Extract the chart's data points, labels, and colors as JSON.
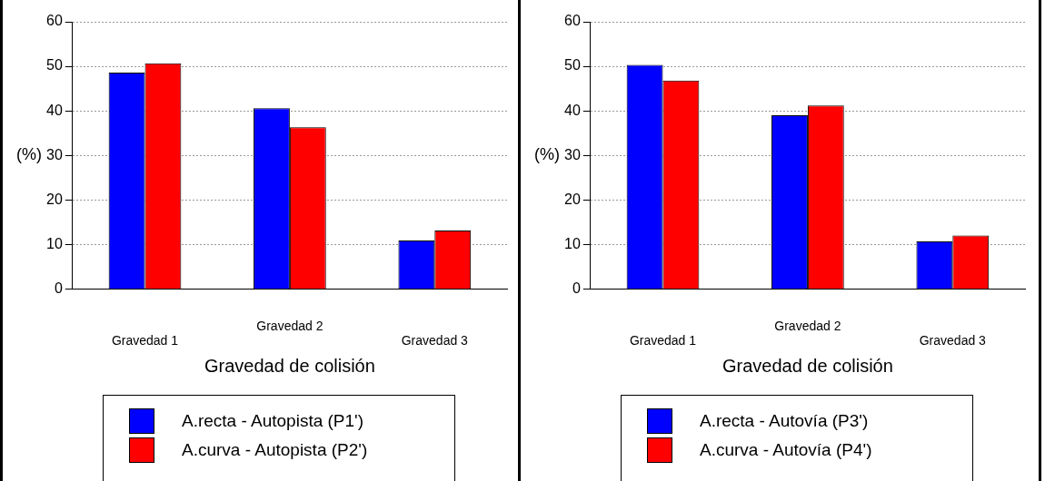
{
  "chart_data": [
    {
      "type": "bar",
      "xlabel": "Gravedad de colisión",
      "ylabel": "(%)",
      "categories": [
        "Gravedad 1",
        "Gravedad 2",
        "Gravedad 3"
      ],
      "series": [
        {
          "name": "A.recta - Autopista (P1')",
          "color": "#0000ff",
          "values": [
            48.6,
            40.6,
            10.9
          ]
        },
        {
          "name": "A.curva - Autopista (P2')",
          "color": "#ff0000",
          "values": [
            50.7,
            36.3,
            13.1
          ]
        }
      ],
      "ylim": [
        0,
        60
      ],
      "yticks": [
        0,
        10,
        20,
        30,
        40,
        50,
        60
      ],
      "grid": "y",
      "legend": "bottom"
    },
    {
      "type": "bar",
      "xlabel": "Gravedad de colisión",
      "ylabel": "(%)",
      "categories": [
        "Gravedad 1",
        "Gravedad 2",
        "Gravedad 3"
      ],
      "series": [
        {
          "name": "A.recta - Autovía (P3')",
          "color": "#0000ff",
          "values": [
            50.3,
            39.0,
            10.7
          ]
        },
        {
          "name": "A.curva - Autovía (P4')",
          "color": "#ff0000",
          "values": [
            46.8,
            41.2,
            12.0
          ]
        }
      ],
      "ylim": [
        0,
        60
      ],
      "yticks": [
        0,
        10,
        20,
        30,
        40,
        50,
        60
      ],
      "grid": "y",
      "legend": "bottom"
    }
  ]
}
